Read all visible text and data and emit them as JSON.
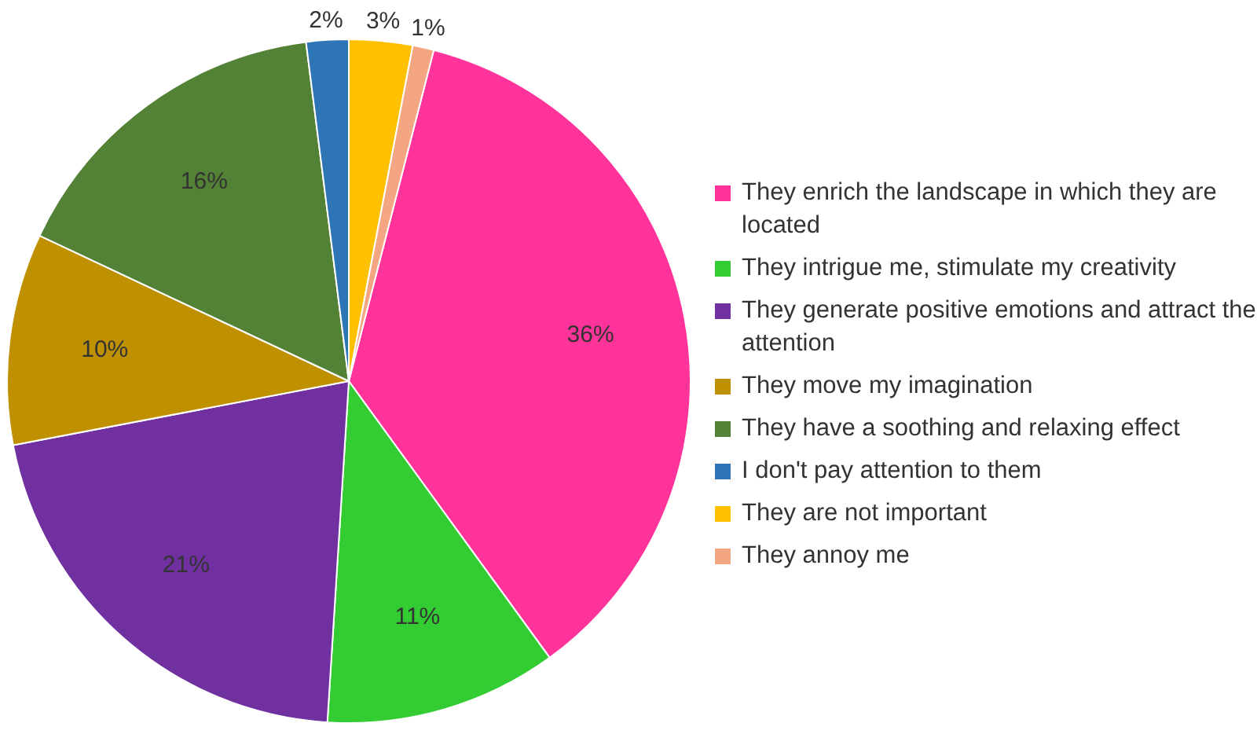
{
  "chart_data": {
    "type": "pie",
    "categories": [
      "They enrich the landscape in which they are located",
      "They intrigue me, stimulate my creativity",
      "They generate positive emotions and attract the attention",
      "They move my imagination",
      "They have a soothing and relaxing effect",
      "I don't pay attention to them",
      "They are not important",
      "They annoy me"
    ],
    "values": [
      36,
      11,
      21,
      10,
      16,
      2,
      3,
      1
    ],
    "colors": [
      "#ff3399",
      "#33cc33",
      "#7030a0",
      "#bf9000",
      "#538135",
      "#2e75b6",
      "#ffc000",
      "#f4a582"
    ],
    "value_labels": [
      "36%",
      "11%",
      "21%",
      "10%",
      "16%",
      "2%",
      "3%",
      "1%"
    ],
    "legend": "right"
  }
}
